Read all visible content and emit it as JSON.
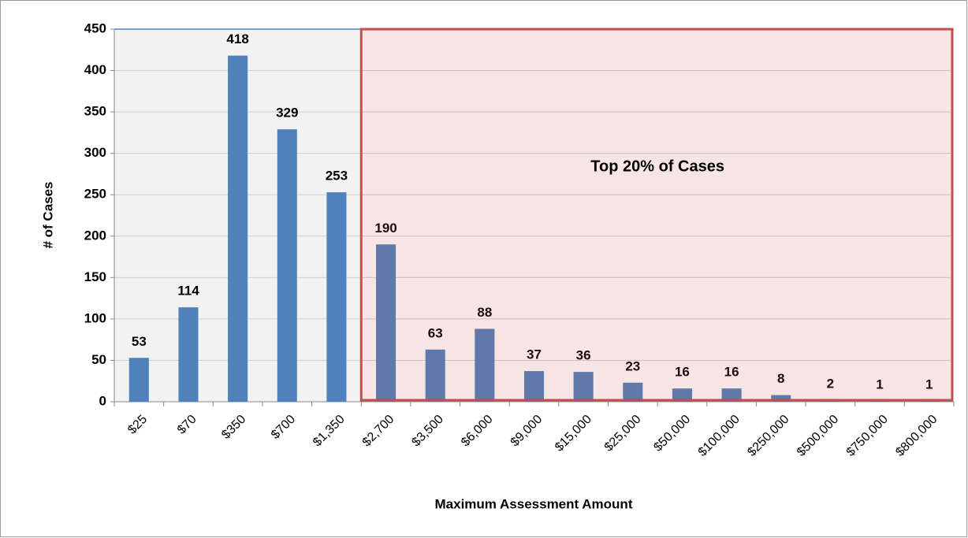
{
  "chart_data": {
    "type": "bar",
    "x_label": "Maximum Assessment Amount",
    "y_label": "# of Cases",
    "categories": [
      "$25",
      "$70",
      "$350",
      "$700",
      "$1,350",
      "$2,700",
      "$3,500",
      "$6,000",
      "$9,000",
      "$15,000",
      "$25,000",
      "$50,000",
      "$100,000",
      "$250,000",
      "$500,000",
      "$750,000",
      "$800,000"
    ],
    "values": [
      53,
      114,
      418,
      329,
      253,
      190,
      63,
      88,
      37,
      36,
      23,
      16,
      16,
      8,
      2,
      1,
      1
    ],
    "color": "#4f81bd",
    "ylim": [
      0,
      450
    ],
    "yticks": [
      0,
      50,
      100,
      150,
      200,
      250,
      300,
      350,
      400,
      450
    ],
    "grid": true,
    "annotation": {
      "text": "Top 20% of Cases",
      "from_category": "$2,700",
      "color": "#c0504d"
    }
  }
}
